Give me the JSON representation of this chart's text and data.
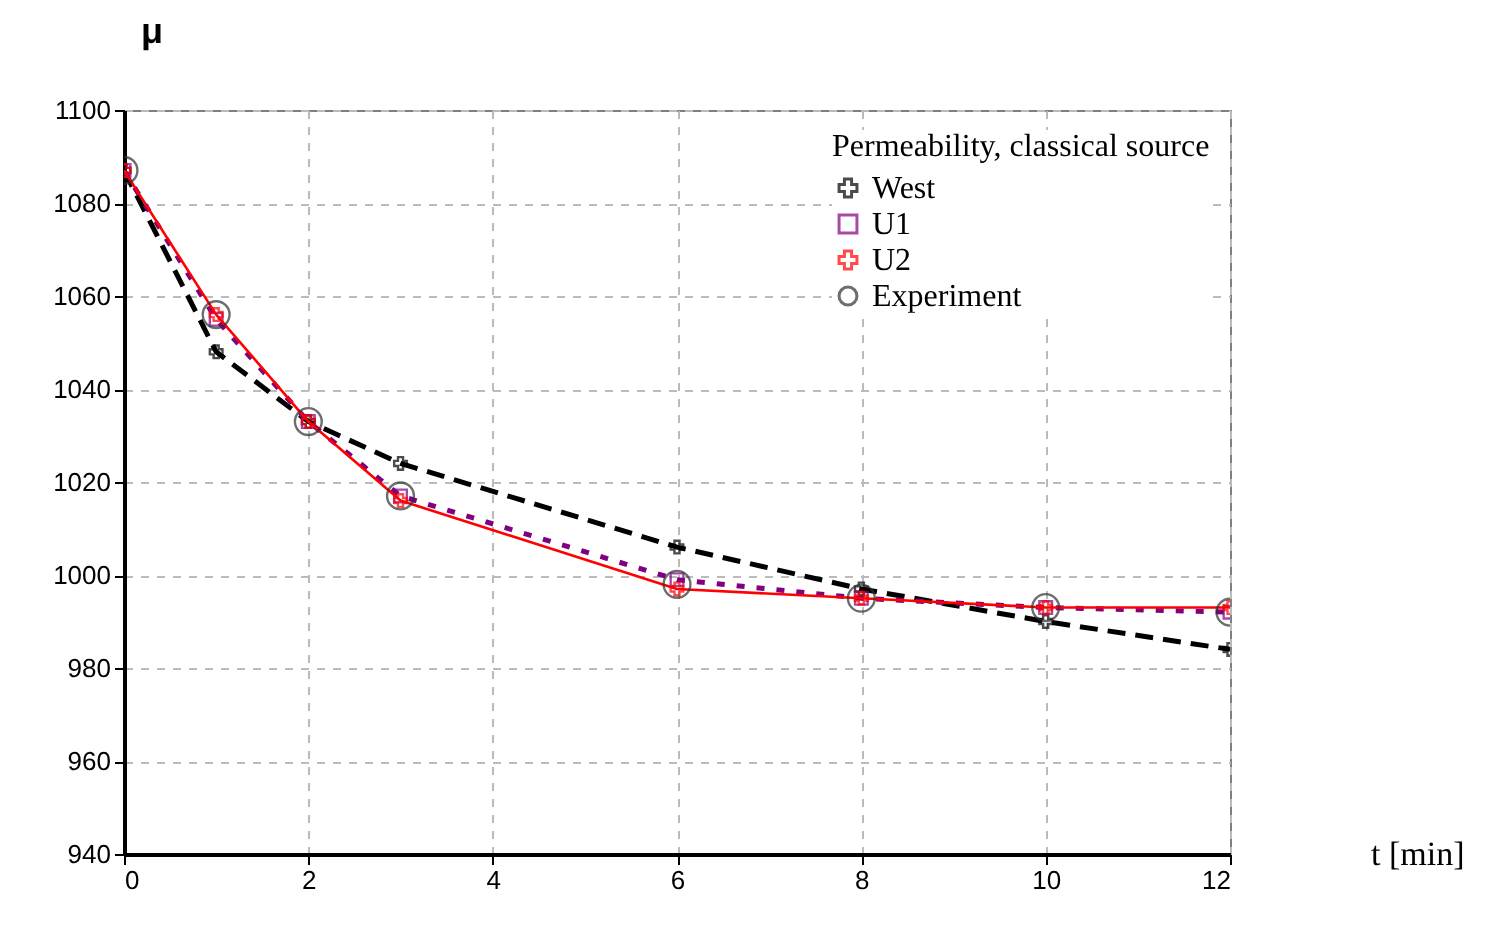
{
  "chart_data": {
    "type": "line",
    "xlabel": "t [min]",
    "ylabel": "μ",
    "legend_title": "Permeability, classical source",
    "x": [
      0,
      1,
      2,
      3,
      6,
      8,
      10,
      12
    ],
    "series": [
      {
        "name": "West",
        "color": "#000000",
        "line_style": "dashed",
        "marker": "cross",
        "values": [
          1087,
          1048,
          1033,
          1024,
          1006,
          997,
          990,
          984
        ]
      },
      {
        "name": "U1",
        "color": "#800080",
        "line_style": "dotted",
        "marker": "square",
        "values": [
          1087,
          1055,
          1033,
          1017,
          999,
          995,
          993,
          992
        ]
      },
      {
        "name": "U2",
        "color": "#ff0000",
        "line_style": "solid",
        "marker": "cross",
        "values": [
          1087,
          1056,
          1033,
          1016,
          997,
          995,
          993,
          993
        ]
      },
      {
        "name": "Experiment",
        "type": "scatter",
        "color": "#303030",
        "marker": "circle",
        "values": [
          1087,
          1056,
          1033,
          1017,
          998,
          995,
          993,
          992
        ]
      }
    ],
    "xlim": [
      0,
      12
    ],
    "xticks": [
      0,
      2,
      4,
      6,
      8,
      10,
      12
    ],
    "ylim": [
      940,
      1100
    ],
    "yticks": [
      940,
      960,
      980,
      1000,
      1020,
      1040,
      1060,
      1080,
      1100
    ],
    "grid": true,
    "legend": "top right"
  }
}
